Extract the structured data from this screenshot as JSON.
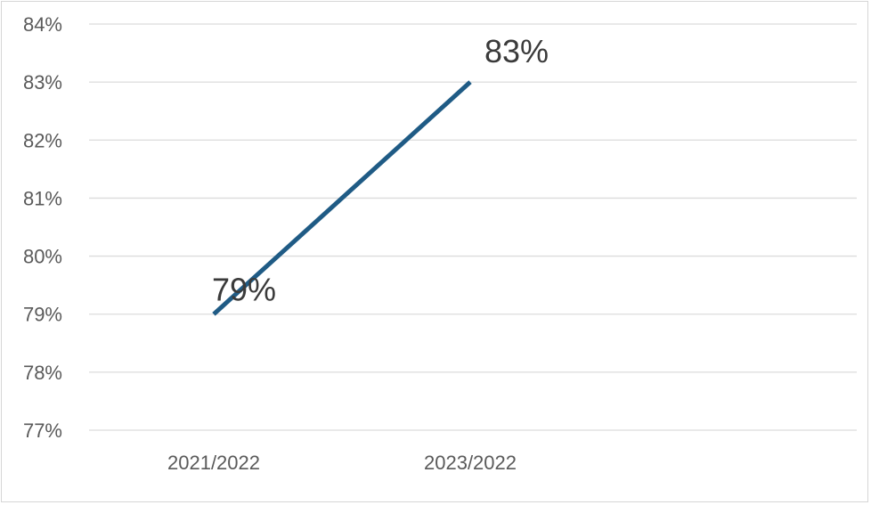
{
  "chart_data": {
    "type": "line",
    "title": "",
    "xlabel": "",
    "ylabel": "",
    "categories": [
      "2021/2022",
      "2023/2022"
    ],
    "series": [
      {
        "values": [
          79,
          83
        ],
        "data_labels": [
          "79%",
          "83%"
        ]
      }
    ],
    "ylim": [
      77,
      84
    ],
    "y_ticks": [
      77,
      78,
      79,
      80,
      81,
      82,
      83,
      84
    ],
    "y_tick_labels": [
      "77%",
      "78%",
      "79%",
      "80%",
      "81%",
      "82%",
      "83%",
      "84%"
    ],
    "grid": true,
    "legend": "none",
    "line_color": "#1f5b85",
    "grid_color": "#dcdcdc"
  }
}
